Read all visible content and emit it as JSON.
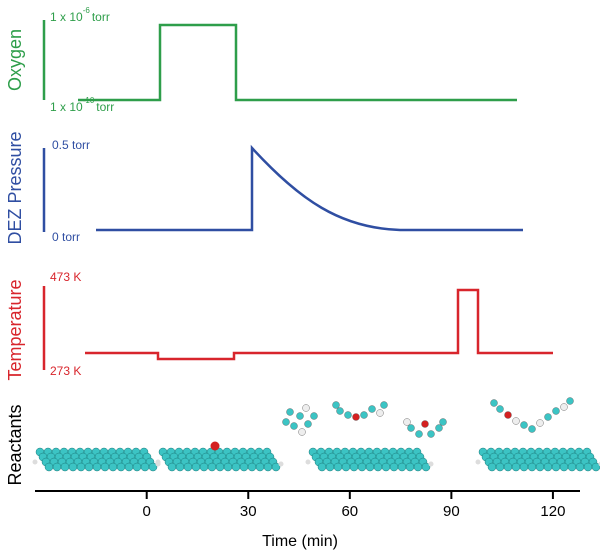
{
  "panels": [
    {
      "label": "Oxygen",
      "top_label": {
        "base": "1 x 10",
        "exp": "-6",
        "unit": "torr"
      },
      "bottom_label": {
        "base": "1 x 10",
        "exp": "-10",
        "unit": "torr"
      }
    },
    {
      "label": "DEZ Pressure",
      "top_label": "0.5 torr",
      "bottom_label": "0 torr"
    },
    {
      "label": "Temperature",
      "top_label": "473 K",
      "bottom_label": "273 K"
    },
    {
      "label": "Reactants"
    }
  ],
  "x_axis": {
    "label": "Time (min)",
    "xlim": [
      -33,
      128
    ],
    "xticks": [
      0,
      30,
      60,
      90,
      120
    ]
  }
}
